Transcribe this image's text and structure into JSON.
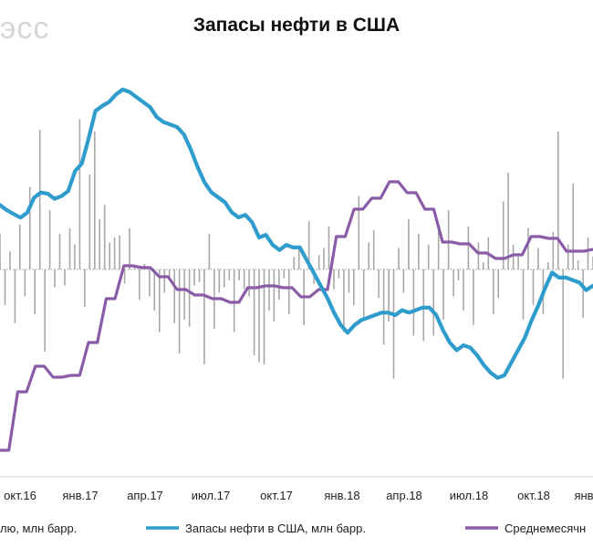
{
  "watermark": "эсс",
  "chart_data": {
    "type": "line",
    "title": "Запасы нефти в США",
    "x_ticks": [
      "окт.16",
      "янв.17",
      "апр.17",
      "июл.17",
      "окт.17",
      "янв.18",
      "апр.18",
      "июл.18",
      "окт.18",
      "янв"
    ],
    "legend": [
      {
        "label": "лю, млн барр.",
        "color": "#a8a8a8"
      },
      {
        "label": "Запасы нефти в США, млн барр.",
        "color": "#2e9ccc"
      },
      {
        "label": "Среднемесячн",
        "color": "#8a5ca8"
      }
    ],
    "series": [
      {
        "name": "Запасы нефти в США, млн барр.",
        "color": "#2e9ccc",
        "values": [
          470.9,
          469.1,
          467.7,
          466.4,
          468.2,
          473.6,
          475.4,
          475.0,
          473.2,
          474.1,
          475.9,
          483.1,
          485.8,
          494.8,
          504.7,
          506.5,
          507.9,
          510.6,
          512.4,
          511.5,
          509.7,
          507.9,
          506.1,
          502.5,
          500.7,
          499.8,
          498.9,
          496.2,
          490.8,
          484.5,
          479.1,
          475.5,
          473.7,
          471.9,
          468.3,
          466.5,
          467.4,
          464.7,
          459.3,
          460.2,
          456.6,
          454.8,
          456.6,
          455.7,
          455.7,
          451.2,
          446.7,
          442.2,
          437.7,
          432.3,
          427.8,
          425.1,
          427.8,
          429.6,
          430.5,
          431.4,
          432.3,
          432.3,
          431.4,
          433.2,
          432.3,
          433.2,
          434.1,
          434.1,
          431.4,
          426.0,
          421.5,
          418.8,
          420.6,
          419.7,
          417.0,
          413.4,
          410.7,
          408.9,
          409.8,
          414.3,
          418.8,
          423.3,
          429.6,
          435.0,
          441.3,
          446.7,
          444.9,
          444.9,
          444.0,
          443.1,
          440.4,
          442.0
        ]
      },
      {
        "name": "Среднемесячн",
        "color": "#8a5ca8",
        "values": [
          -9.9,
          -9.9,
          -6.7,
          -6.7,
          -5.3,
          -5.3,
          -5.9,
          -5.9,
          -5.8,
          -5.8,
          -4.0,
          -4.0,
          -1.6,
          -1.6,
          0.2,
          0.2,
          0.1,
          0.1,
          -0.4,
          -0.4,
          -1.1,
          -1.1,
          -1.4,
          -1.4,
          -1.6,
          -1.6,
          -1.8,
          -1.8,
          -1.0,
          -1.0,
          -0.9,
          -0.9,
          -1.0,
          -1.0,
          -1.5,
          -1.5,
          -1.1,
          -1.1,
          1.8,
          1.8,
          3.3,
          3.3,
          3.9,
          3.9,
          4.8,
          4.8,
          4.2,
          4.2,
          3.3,
          3.3,
          1.5,
          1.5,
          1.4,
          1.4,
          0.9,
          0.9,
          0.6,
          0.6,
          0.8,
          0.8,
          1.8,
          1.8,
          1.7,
          1.7,
          1.0,
          1.0,
          1.0,
          1.1
        ]
      },
      {
        "name": "лю, млн барр.",
        "color": "#a8a8a8",
        "values": [
          2.0,
          -2.0,
          1.0,
          -3.0,
          2.5,
          -1.5,
          4.6,
          -2.5,
          7.8,
          -4.6,
          3.3,
          -1.0,
          2.0,
          -0.9,
          2.3,
          1.4,
          8.4,
          -2.1,
          5.3,
          7.7,
          2.8,
          3.6,
          1.5,
          1.8,
          1.9,
          -0.8,
          2.3,
          0.2,
          -1.7,
          0.3,
          -1.5,
          -2.3,
          -3.5,
          -1.3,
          -0.6,
          -3.0,
          -4.7,
          -2.8,
          -3.2,
          -0.9,
          -0.7,
          -5.3,
          2.0,
          -3.3,
          -1.3,
          -1.0,
          -0.6,
          -3.5,
          -0.6,
          -1.1,
          -1.5,
          -4.8,
          -5.2,
          -5.3,
          -2.3,
          -2.9,
          -1.7,
          -0.5,
          -2.5,
          0.7,
          1.3,
          -3.1,
          2.7,
          -0.8,
          0.8,
          1.2,
          2.4,
          -1.1,
          -0.5,
          -3.5,
          -1.3,
          -2.0,
          4.1,
          -2.7,
          1.5,
          2.2,
          -1.6,
          -4.2,
          -2.9,
          -6.1,
          1.2,
          -1.3,
          2.8,
          -3.7,
          2.0,
          -4.0,
          1.4,
          -3.7,
          2.5,
          -2.8,
          3.3,
          -1.5,
          -0.6,
          -2.3,
          2.4,
          -3.1,
          1.5,
          0.4,
          1.8,
          -2.5,
          -1.6,
          3.8,
          5.4,
          1.4,
          0.9,
          -2.8,
          2.3,
          -2.0,
          1.2,
          -2.5,
          0.4,
          2.1,
          7.7,
          -6.1,
          1.4,
          4.8,
          0.5,
          -2.7,
          1.8,
          0.7
        ]
      }
    ]
  }
}
